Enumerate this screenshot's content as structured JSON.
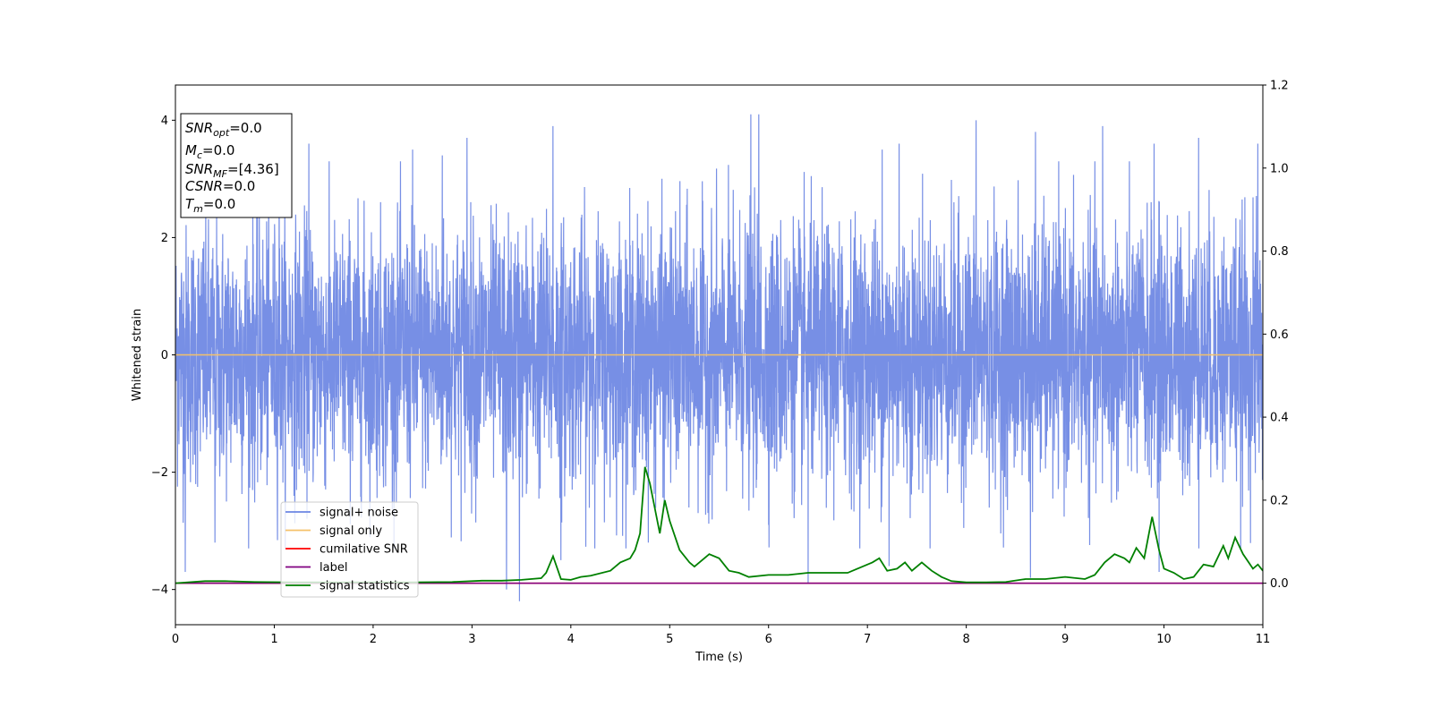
{
  "chart_data": {
    "type": "line",
    "xlabel": "Time (s)",
    "ylabel": "Whitened strain",
    "xlim": [
      0,
      11
    ],
    "ylim_left": [
      -4.6,
      4.6
    ],
    "ylim_right": [
      -0.1,
      1.2
    ],
    "x_ticks": [
      0,
      1,
      2,
      3,
      4,
      5,
      6,
      7,
      8,
      9,
      10,
      11
    ],
    "y_ticks_left": [
      -4,
      -2,
      0,
      2,
      4
    ],
    "y_ticks_right": [
      0.0,
      0.2,
      0.4,
      0.6,
      0.8,
      1.0,
      1.2
    ],
    "y_tick_labels_left": [
      "−4",
      "−2",
      "0",
      "2",
      "4"
    ],
    "y_tick_labels_right": [
      "0.0",
      "0.2",
      "0.4",
      "0.6",
      "0.8",
      "1.0",
      "1.2"
    ],
    "grid": false,
    "legend_position": "lower-left",
    "colors": {
      "noise": "#6b86e3",
      "signal_only": "#f5c16a",
      "cumulative_snr": "#ff0000",
      "label": "#800080",
      "statistics": "#008000"
    },
    "series": [
      {
        "name": "signal+ noise",
        "axis": "left",
        "description": "dense whitened strain noise, roughly spanning ±2 to ±4",
        "envelope_upper_typical": 2.4,
        "envelope_lower_typical": -2.4,
        "peaks_upper": [
          [
            0.1,
            2.8
          ],
          [
            1.05,
            3.5
          ],
          [
            1.35,
            3.6
          ],
          [
            2.4,
            3.5
          ],
          [
            2.7,
            3.4
          ],
          [
            2.95,
            3.7
          ],
          [
            3.82,
            3.9
          ],
          [
            3.9,
            3.7
          ],
          [
            5.82,
            4.1
          ],
          [
            5.9,
            4.1
          ],
          [
            7.15,
            3.5
          ],
          [
            7.32,
            3.6
          ],
          [
            8.1,
            4.0
          ],
          [
            8.7,
            3.8
          ],
          [
            9.38,
            3.9
          ],
          [
            9.9,
            3.6
          ],
          [
            10.35,
            3.7
          ],
          [
            10.95,
            3.6
          ]
        ],
        "peaks_lower": [
          [
            0.1,
            -3.7
          ],
          [
            0.4,
            -3.2
          ],
          [
            3.35,
            -4.0
          ],
          [
            3.48,
            -4.2
          ],
          [
            3.9,
            -3.5
          ],
          [
            6.4,
            -3.9
          ],
          [
            7.22,
            -3.6
          ],
          [
            8.65,
            -3.8
          ],
          [
            9.95,
            -3.7
          ]
        ]
      },
      {
        "name": "signal only",
        "axis": "left",
        "x": [
          0,
          11
        ],
        "y": [
          0,
          0
        ]
      },
      {
        "name": "cumilative SNR",
        "axis": "right",
        "x": [
          0,
          11
        ],
        "y": [
          0,
          0
        ]
      },
      {
        "name": "label",
        "axis": "right",
        "x": [
          0,
          11
        ],
        "y": [
          0,
          0
        ]
      },
      {
        "name": "signal statistics",
        "axis": "right",
        "x": [
          0,
          0.3,
          0.5,
          0.8,
          1.2,
          1.6,
          2.0,
          2.4,
          2.8,
          3.1,
          3.3,
          3.5,
          3.7,
          3.75,
          3.82,
          3.9,
          4.0,
          4.1,
          4.2,
          4.4,
          4.5,
          4.6,
          4.65,
          4.7,
          4.75,
          4.8,
          4.85,
          4.9,
          4.95,
          5.0,
          5.1,
          5.2,
          5.25,
          5.3,
          5.4,
          5.5,
          5.6,
          5.7,
          5.8,
          6.0,
          6.2,
          6.4,
          6.6,
          6.8,
          6.95,
          7.05,
          7.12,
          7.2,
          7.3,
          7.38,
          7.45,
          7.55,
          7.65,
          7.75,
          7.85,
          8.0,
          8.2,
          8.4,
          8.6,
          8.8,
          9.0,
          9.2,
          9.3,
          9.4,
          9.5,
          9.6,
          9.65,
          9.72,
          9.8,
          9.88,
          9.95,
          10.0,
          10.1,
          10.2,
          10.3,
          10.4,
          10.5,
          10.6,
          10.65,
          10.72,
          10.8,
          10.9,
          10.95,
          11.0
        ],
        "y": [
          0.0,
          0.005,
          0.005,
          0.003,
          0.002,
          0.002,
          0.002,
          0.002,
          0.003,
          0.006,
          0.006,
          0.008,
          0.012,
          0.025,
          0.065,
          0.01,
          0.008,
          0.015,
          0.018,
          0.03,
          0.05,
          0.06,
          0.08,
          0.12,
          0.28,
          0.24,
          0.18,
          0.12,
          0.2,
          0.15,
          0.08,
          0.05,
          0.04,
          0.05,
          0.07,
          0.06,
          0.03,
          0.025,
          0.015,
          0.02,
          0.02,
          0.025,
          0.025,
          0.025,
          0.04,
          0.05,
          0.06,
          0.03,
          0.035,
          0.05,
          0.03,
          0.05,
          0.03,
          0.015,
          0.005,
          0.002,
          0.002,
          0.003,
          0.01,
          0.01,
          0.015,
          0.01,
          0.02,
          0.05,
          0.07,
          0.06,
          0.05,
          0.085,
          0.06,
          0.16,
          0.08,
          0.035,
          0.025,
          0.01,
          0.015,
          0.045,
          0.04,
          0.09,
          0.06,
          0.11,
          0.07,
          0.035,
          0.045,
          0.03
        ]
      }
    ],
    "annotation": {
      "lines": [
        {
          "main": "SNR",
          "sub": "opt",
          "rest": "=0.0"
        },
        {
          "main": "M",
          "sub": "c",
          "rest": "=0.0"
        },
        {
          "main": "SNR",
          "sub": "MF",
          "rest": "=[4.36]"
        },
        {
          "main": "CSNR",
          "sub": "",
          "rest": "=0.0"
        },
        {
          "main": "T",
          "sub": "m",
          "rest": "=0.0"
        }
      ]
    }
  }
}
